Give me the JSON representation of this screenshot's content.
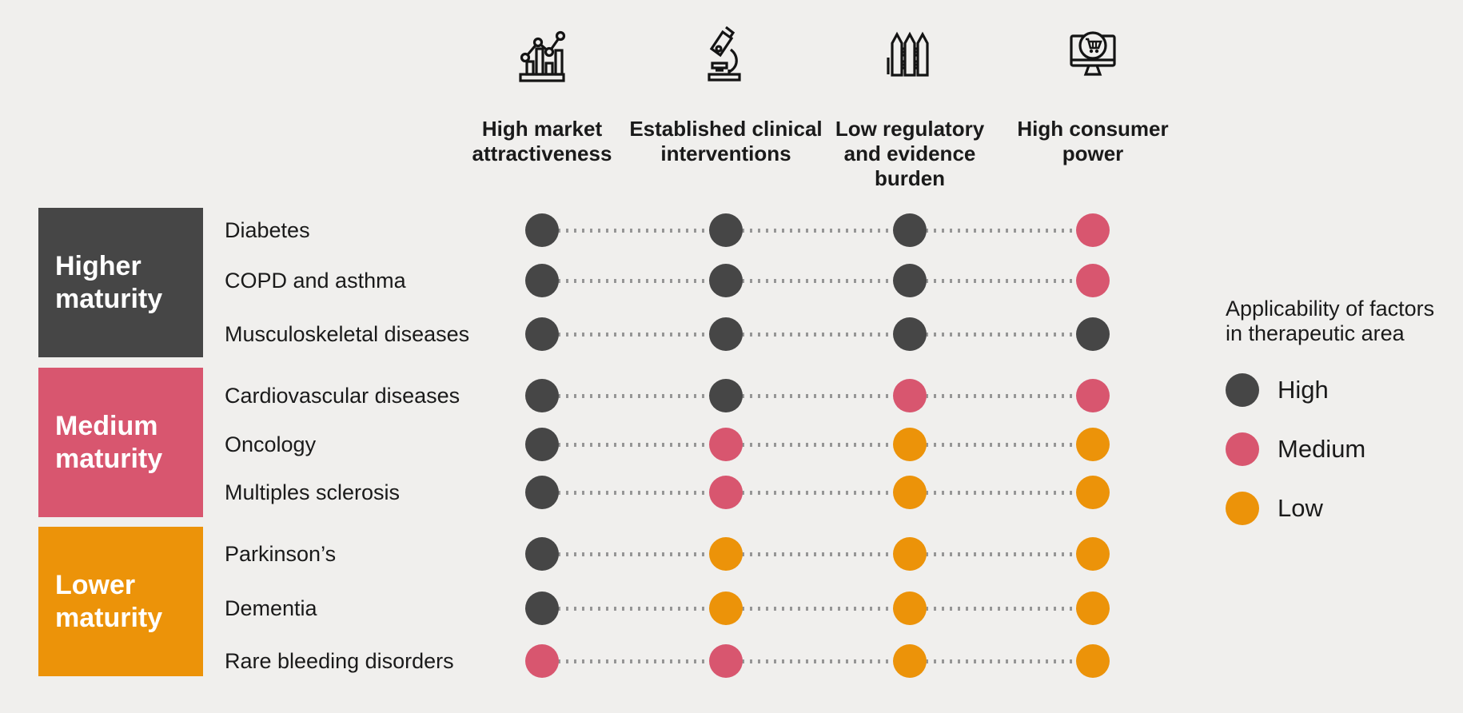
{
  "colors": {
    "background": "#f0efed",
    "high": "#464646",
    "medium": "#d8566f",
    "low": "#ec9309",
    "connector": "#969696",
    "text": "#1a1a1a",
    "block_text": "#ffffff"
  },
  "factors": [
    {
      "icon": "bar-chart-icon",
      "label": "High market attractiveness",
      "lines": [
        "High market",
        "attractiveness"
      ]
    },
    {
      "icon": "microscope-icon",
      "label": "Established clinical interventions",
      "lines": [
        "Established clinical",
        "interventions"
      ]
    },
    {
      "icon": "fence-icon",
      "label": "Low regulatory and evidence burden",
      "lines": [
        "Low regulatory",
        "and evidence",
        "burden"
      ]
    },
    {
      "icon": "online-shopping-icon",
      "label": "High consumer power",
      "lines": [
        "High consumer",
        "power"
      ]
    }
  ],
  "maturity_groups": [
    {
      "label": "Higher maturity",
      "level": "high",
      "lines": [
        "Higher",
        "maturity"
      ]
    },
    {
      "label": "Medium maturity",
      "level": "medium",
      "lines": [
        "Medium",
        "maturity"
      ]
    },
    {
      "label": "Lower maturity",
      "level": "low",
      "lines": [
        "Lower",
        "maturity"
      ]
    }
  ],
  "rows": [
    {
      "area": "Diabetes",
      "group": 0,
      "applicability": [
        "high",
        "high",
        "high",
        "medium"
      ]
    },
    {
      "area": "COPD and asthma",
      "group": 0,
      "applicability": [
        "high",
        "high",
        "high",
        "medium"
      ]
    },
    {
      "area": "Musculoskeletal diseases",
      "group": 0,
      "applicability": [
        "high",
        "high",
        "high",
        "high"
      ]
    },
    {
      "area": "Cardiovascular diseases",
      "group": 1,
      "applicability": [
        "high",
        "high",
        "medium",
        "medium"
      ]
    },
    {
      "area": "Oncology",
      "group": 1,
      "applicability": [
        "high",
        "medium",
        "low",
        "low"
      ]
    },
    {
      "area": "Multiples sclerosis",
      "group": 1,
      "applicability": [
        "high",
        "medium",
        "low",
        "low"
      ]
    },
    {
      "area": "Parkinson’s",
      "group": 2,
      "applicability": [
        "high",
        "low",
        "low",
        "low"
      ]
    },
    {
      "area": "Dementia",
      "group": 2,
      "applicability": [
        "high",
        "low",
        "low",
        "low"
      ]
    },
    {
      "area": "Rare bleeding disorders",
      "group": 2,
      "applicability": [
        "medium",
        "medium",
        "low",
        "low"
      ]
    }
  ],
  "legend": {
    "title": "Applicability of factors in therapeutic area",
    "title_lines": [
      "Applicability of factors",
      "in therapeutic area"
    ],
    "items": [
      {
        "label": "High",
        "level": "high"
      },
      {
        "label": "Medium",
        "level": "medium"
      },
      {
        "label": "Low",
        "level": "low"
      }
    ]
  },
  "chart_data": {
    "type": "heatmap",
    "columns": [
      "High market attractiveness",
      "Established clinical interventions",
      "Low regulatory and evidence burden",
      "High consumer power"
    ],
    "rows": [
      "Diabetes",
      "COPD and asthma",
      "Musculoskeletal diseases",
      "Cardiovascular diseases",
      "Oncology",
      "Multiples sclerosis",
      "Parkinson’s",
      "Dementia",
      "Rare bleeding disorders"
    ],
    "row_groups": [
      {
        "label": "Higher maturity",
        "rows": [
          "Diabetes",
          "COPD and asthma",
          "Musculoskeletal diseases"
        ]
      },
      {
        "label": "Medium maturity",
        "rows": [
          "Cardiovascular diseases",
          "Oncology",
          "Multiples sclerosis"
        ]
      },
      {
        "label": "Lower maturity",
        "rows": [
          "Parkinson’s",
          "Dementia",
          "Rare bleeding disorders"
        ]
      }
    ],
    "values": [
      [
        "High",
        "High",
        "High",
        "Medium"
      ],
      [
        "High",
        "High",
        "High",
        "Medium"
      ],
      [
        "High",
        "High",
        "High",
        "High"
      ],
      [
        "High",
        "High",
        "Medium",
        "Medium"
      ],
      [
        "High",
        "Medium",
        "Low",
        "Low"
      ],
      [
        "High",
        "Medium",
        "Low",
        "Low"
      ],
      [
        "High",
        "Low",
        "Low",
        "Low"
      ],
      [
        "High",
        "Low",
        "Low",
        "Low"
      ],
      [
        "Medium",
        "Medium",
        "Low",
        "Low"
      ]
    ],
    "legend_title": "Applicability of factors in therapeutic area",
    "levels": [
      "High",
      "Medium",
      "Low"
    ]
  }
}
